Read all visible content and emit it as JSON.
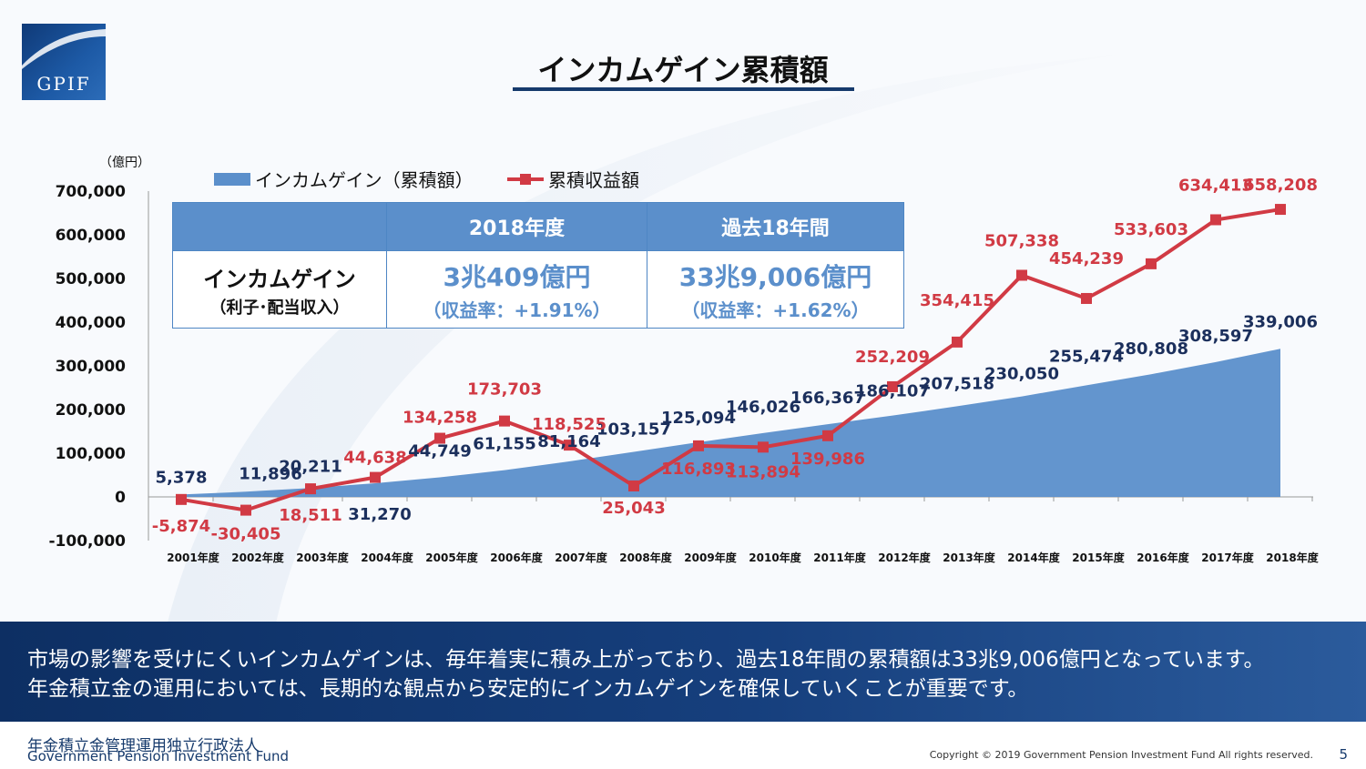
{
  "logo": {
    "text": "GPIF"
  },
  "title": "インカムゲイン累積額",
  "chart_data": {
    "type": "line",
    "unit_label": "（億円）",
    "categories": [
      "2001年度",
      "2002年度",
      "2003年度",
      "2004年度",
      "2005年度",
      "2006年度",
      "2007年度",
      "2008年度",
      "2009年度",
      "2010年度",
      "2011年度",
      "2012年度",
      "2013年度",
      "2014年度",
      "2015年度",
      "2016年度",
      "2017年度",
      "2018年度"
    ],
    "y_ticks": [
      "700,000",
      "600,000",
      "500,000",
      "400,000",
      "300,000",
      "200,000",
      "100,000",
      "0",
      "-100,000"
    ],
    "ylim": [
      -100000,
      700000
    ],
    "legend_position": "top",
    "series": [
      {
        "name": "インカムゲイン（累積額）",
        "kind": "area",
        "color": "#5b8fcb",
        "values": [
          5378,
          11896,
          20211,
          31270,
          44749,
          61155,
          81164,
          103157,
          125094,
          146026,
          166367,
          186107,
          207518,
          230050,
          255474,
          280808,
          308597,
          339006
        ],
        "labels": [
          "5,378",
          "11,896",
          "20,211",
          "31,270",
          "44,749",
          "61,155",
          "81,164",
          "103,157",
          "125,094",
          "146,026",
          "166,367",
          "186,107",
          "207,518",
          "230,050",
          "255,474",
          "280,808",
          "308,597",
          "339,006"
        ]
      },
      {
        "name": "累積収益額",
        "kind": "line",
        "color": "#d13a44",
        "values": [
          -5874,
          -30405,
          18511,
          44638,
          134258,
          173703,
          118525,
          25043,
          116893,
          113894,
          139986,
          252209,
          354415,
          507338,
          454239,
          533603,
          634413,
          658208
        ],
        "labels": [
          "-5,874",
          "-30,405",
          "18,511",
          "44,638",
          "134,258",
          "173,703",
          "118,525",
          "25,043",
          "116,893",
          "113,894",
          "139,986",
          "252,209",
          "354,415",
          "507,338",
          "454,239",
          "533,603",
          "634,413",
          "658,208"
        ]
      }
    ]
  },
  "table": {
    "col1": "2018年度",
    "col2": "過去18年間",
    "row_label": "インカムゲイン",
    "row_sublabel": "（利子･配当収入）",
    "val1": "3兆409億円",
    "val1_sub": "（収益率：+1.91%）",
    "val2": "33兆9,006億円",
    "val2_sub": "（収益率：+1.62%）"
  },
  "banner": {
    "line1": "市場の影響を受けにくいインカムゲインは、毎年着実に積み上がっており、過去18年間の累積額は33兆9,006億円となっています。",
    "line2": "年金積立金の運用においては、長期的な観点から安定的にインカムゲインを確保していくことが重要です。"
  },
  "footer": {
    "org_ja": "年金積立金管理運用独立行政法人",
    "org_en": "Government Pension Investment Fund",
    "copyright": "Copyright © 2019 Government Pension Investment Fund All rights reserved.",
    "page": "5"
  }
}
